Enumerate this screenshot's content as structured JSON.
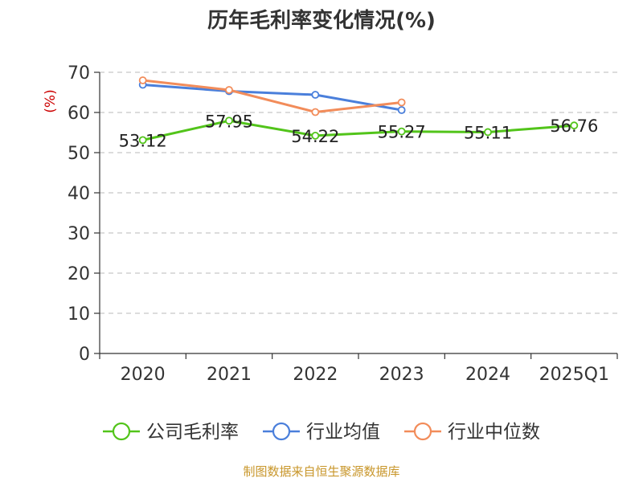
{
  "chart_data": {
    "type": "line",
    "title": "历年毛利率变化情况(%)",
    "ylabel": "(%)",
    "xlabel": "",
    "categories": [
      "2020",
      "2021",
      "2022",
      "2023",
      "2024",
      "2025Q1"
    ],
    "ylim": [
      0,
      70
    ],
    "yticks": [
      0,
      10,
      20,
      30,
      40,
      50,
      60,
      70
    ],
    "grid": true,
    "legend_position": "bottom",
    "series": [
      {
        "name": "公司毛利率",
        "color": "#52c41a",
        "values": [
          53.12,
          57.95,
          54.22,
          55.27,
          55.11,
          56.76
        ],
        "labels": [
          "53.12",
          "57.95",
          "54.22",
          "55.27",
          "55.11",
          "56.76"
        ],
        "show_labels": true
      },
      {
        "name": "行业均值",
        "color": "#4a7fdb",
        "values": [
          66.9,
          65.3,
          64.4,
          60.6,
          null,
          null
        ],
        "show_labels": false
      },
      {
        "name": "行业中位数",
        "color": "#f28c5a",
        "values": [
          68.0,
          65.6,
          60.1,
          62.5,
          null,
          null
        ],
        "show_labels": false
      }
    ]
  },
  "source": "制图数据来自恒生聚源数据库"
}
